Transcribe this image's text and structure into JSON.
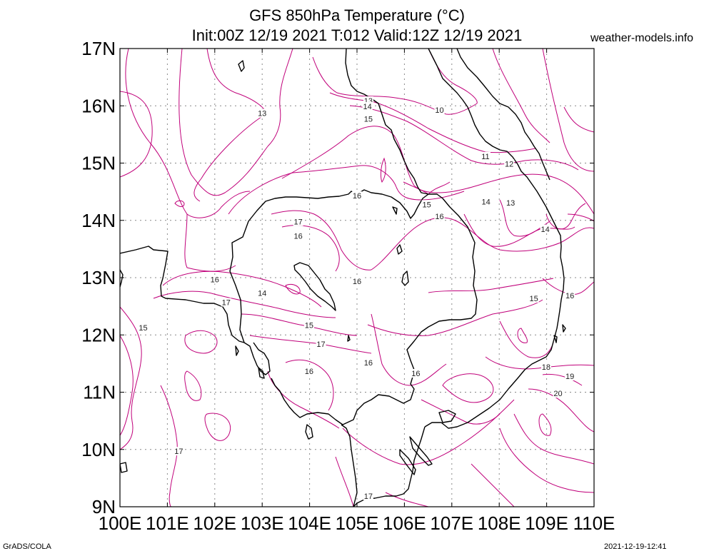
{
  "header": {
    "title_line1": "GFS 850hPa Temperature (°C)",
    "title_line2": "Init:00Z 12/19 2021 T:012 Valid:12Z 12/19 2021",
    "site": "weather-models.info"
  },
  "footer": {
    "credit": "GrADS/COLA",
    "timestamp": "2021-12-19-12:41"
  },
  "map": {
    "lon_range": [
      100,
      110
    ],
    "lat_range": [
      9,
      17
    ],
    "lat_ticks": [
      {
        "lat": 17,
        "label": "17N"
      },
      {
        "lat": 16,
        "label": "16N"
      },
      {
        "lat": 15,
        "label": "15N"
      },
      {
        "lat": 14,
        "label": "14N"
      },
      {
        "lat": 13,
        "label": "13N"
      },
      {
        "lat": 12,
        "label": "12N"
      },
      {
        "lat": 11,
        "label": "11N"
      },
      {
        "lat": 10,
        "label": "10N"
      },
      {
        "lat": 9,
        "label": "9N"
      }
    ],
    "lon_ticks": [
      {
        "lon": 100,
        "label": "100E"
      },
      {
        "lon": 101,
        "label": "101E"
      },
      {
        "lon": 102,
        "label": "102E"
      },
      {
        "lon": 103,
        "label": "103E"
      },
      {
        "lon": 104,
        "label": "104E"
      },
      {
        "lon": 105,
        "label": "105E"
      },
      {
        "lon": 106,
        "label": "106E"
      },
      {
        "lon": 107,
        "label": "107E"
      },
      {
        "lon": 108,
        "label": "108E"
      },
      {
        "lon": 109,
        "label": "109E"
      },
      {
        "lon": 110,
        "label": "110E"
      }
    ],
    "contour_color": "#c0007a",
    "coast_color": "#000000",
    "contour_labels": [
      {
        "text": "13",
        "lon": 103.0,
        "lat": 15.87
      },
      {
        "text": "13",
        "lon": 105.24,
        "lat": 16.09
      },
      {
        "text": "14",
        "lon": 105.22,
        "lat": 15.99
      },
      {
        "text": "15",
        "lon": 105.24,
        "lat": 15.77
      },
      {
        "text": "10",
        "lon": 106.74,
        "lat": 15.93
      },
      {
        "text": "11",
        "lon": 107.71,
        "lat": 15.12
      },
      {
        "text": "12",
        "lon": 108.21,
        "lat": 14.99
      },
      {
        "text": "16",
        "lon": 105.0,
        "lat": 14.43
      },
      {
        "text": "15",
        "lon": 106.47,
        "lat": 14.28
      },
      {
        "text": "16",
        "lon": 106.74,
        "lat": 14.07
      },
      {
        "text": "14",
        "lon": 107.72,
        "lat": 14.33
      },
      {
        "text": "13",
        "lon": 108.24,
        "lat": 14.31
      },
      {
        "text": "14",
        "lon": 108.97,
        "lat": 13.85
      },
      {
        "text": "17",
        "lon": 103.76,
        "lat": 13.98
      },
      {
        "text": "16",
        "lon": 103.76,
        "lat": 13.73
      },
      {
        "text": "16",
        "lon": 105.0,
        "lat": 12.94
      },
      {
        "text": "16",
        "lon": 102.0,
        "lat": 12.97
      },
      {
        "text": "14",
        "lon": 103.0,
        "lat": 12.73
      },
      {
        "text": "17",
        "lon": 102.24,
        "lat": 12.57
      },
      {
        "text": "15",
        "lon": 103.99,
        "lat": 12.17
      },
      {
        "text": "17",
        "lon": 104.24,
        "lat": 11.84
      },
      {
        "text": "16",
        "lon": 105.24,
        "lat": 11.52
      },
      {
        "text": "16",
        "lon": 103.99,
        "lat": 11.37
      },
      {
        "text": "16",
        "lon": 106.24,
        "lat": 11.33
      },
      {
        "text": "15",
        "lon": 108.73,
        "lat": 12.64
      },
      {
        "text": "16",
        "lon": 109.49,
        "lat": 12.69
      },
      {
        "text": "18",
        "lon": 108.99,
        "lat": 11.44
      },
      {
        "text": "19",
        "lon": 109.49,
        "lat": 11.28
      },
      {
        "text": "20",
        "lon": 109.24,
        "lat": 10.98
      },
      {
        "text": "15",
        "lon": 100.49,
        "lat": 12.13
      },
      {
        "text": "17",
        "lon": 101.24,
        "lat": 9.97
      },
      {
        "text": "17",
        "lon": 105.24,
        "lat": 9.19
      }
    ]
  }
}
